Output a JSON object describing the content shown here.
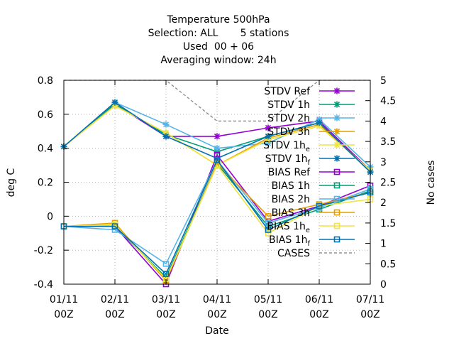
{
  "chart_data": {
    "type": "line",
    "title_lines": [
      "Temperature 500hPa",
      "Selection: ALL       5 stations",
      "Used  00 + 06",
      "Averaging window: 24h"
    ],
    "xlabel": "Date",
    "ylabel": "deg C",
    "y2label": "No cases",
    "categories": [
      "01/11\n00Z",
      "02/11\n00Z",
      "03/11\n00Z",
      "04/11\n00Z",
      "05/11\n00Z",
      "06/11\n00Z",
      "07/11\n00Z"
    ],
    "ylim": [
      -0.4,
      0.8
    ],
    "y_ticks": [
      "-0.4",
      "-0.2",
      "0",
      "0.2",
      "0.4",
      "0.6",
      "0.8"
    ],
    "y2lim": [
      0,
      5
    ],
    "y2_ticks": [
      "0",
      "0.5",
      "1",
      "1.5",
      "2",
      "2.5",
      "3",
      "3.5",
      "4",
      "4.5",
      "5"
    ],
    "grid": true,
    "legend_position": "top-right, inside",
    "series": [
      {
        "name": "STDV Ref",
        "color": "#9400d3",
        "marker": "star",
        "axis": "y",
        "values": [
          0.41,
          0.66,
          0.47,
          0.47,
          0.52,
          0.56,
          0.27
        ]
      },
      {
        "name": "STDV 1h",
        "color": "#009e73",
        "marker": "star",
        "axis": "y",
        "values": [
          0.41,
          0.66,
          0.48,
          0.38,
          0.47,
          0.55,
          0.26
        ]
      },
      {
        "name": "STDV 2h",
        "color": "#56b4e9",
        "marker": "star",
        "axis": "y",
        "values": [
          0.41,
          0.67,
          0.54,
          0.4,
          0.43,
          0.57,
          0.29
        ]
      },
      {
        "name": "STDV 3h",
        "color": "#e69f00",
        "marker": "star",
        "axis": "y",
        "values": [
          0.41,
          0.65,
          0.49,
          0.3,
          0.46,
          0.54,
          0.27
        ]
      },
      {
        "name": "STDV 1he",
        "color": "#f0e442",
        "marker": "star",
        "axis": "y",
        "values": [
          0.41,
          0.65,
          0.49,
          0.3,
          0.45,
          0.53,
          0.27
        ]
      },
      {
        "name": "STDV 1hf",
        "color": "#0072b2",
        "marker": "star",
        "axis": "y",
        "values": [
          0.41,
          0.67,
          0.47,
          0.34,
          0.47,
          0.55,
          0.26
        ]
      },
      {
        "name": "BIAS Ref",
        "color": "#9400d3",
        "marker": "square",
        "axis": "y",
        "values": [
          -0.06,
          -0.06,
          -0.4,
          0.36,
          -0.03,
          0.06,
          0.18
        ]
      },
      {
        "name": "BIAS 1h",
        "color": "#009e73",
        "marker": "square",
        "axis": "y",
        "values": [
          -0.06,
          -0.06,
          -0.36,
          0.31,
          -0.06,
          0.04,
          0.15
        ]
      },
      {
        "name": "BIAS 2h",
        "color": "#56b4e9",
        "marker": "square",
        "axis": "y",
        "values": [
          -0.06,
          -0.08,
          -0.28,
          0.33,
          -0.04,
          0.05,
          0.16
        ]
      },
      {
        "name": "BIAS 3h",
        "color": "#e69f00",
        "marker": "square",
        "axis": "y",
        "values": [
          -0.06,
          -0.04,
          -0.38,
          0.31,
          0.0,
          0.07,
          0.14
        ]
      },
      {
        "name": "BIAS 1he",
        "color": "#f0e442",
        "marker": "square",
        "axis": "y",
        "values": [
          -0.06,
          -0.05,
          -0.37,
          0.3,
          -0.1,
          0.06,
          0.1
        ]
      },
      {
        "name": "BIAS 1hf",
        "color": "#0072b2",
        "marker": "square",
        "axis": "y",
        "values": [
          -0.06,
          -0.06,
          -0.34,
          0.33,
          -0.08,
          0.06,
          0.14
        ]
      },
      {
        "name": "CASES",
        "color": "#808080",
        "marker": "none",
        "dashed": true,
        "axis": "y2",
        "values": [
          5,
          5,
          5,
          4,
          4,
          5,
          5
        ]
      }
    ],
    "legend": [
      {
        "label": "STDV Ref",
        "sub": ""
      },
      {
        "label": "STDV 1h",
        "sub": ""
      },
      {
        "label": "STDV 2h",
        "sub": ""
      },
      {
        "label": "STDV 3h",
        "sub": ""
      },
      {
        "label": "STDV 1h",
        "sub": "e"
      },
      {
        "label": "STDV 1h",
        "sub": "f"
      },
      {
        "label": "BIAS Ref",
        "sub": ""
      },
      {
        "label": "BIAS 1h",
        "sub": ""
      },
      {
        "label": "BIAS 2h",
        "sub": ""
      },
      {
        "label": "BIAS 3h",
        "sub": ""
      },
      {
        "label": "BIAS 1h",
        "sub": "e"
      },
      {
        "label": "BIAS 1h",
        "sub": "f"
      },
      {
        "label": "CASES",
        "sub": ""
      }
    ]
  }
}
